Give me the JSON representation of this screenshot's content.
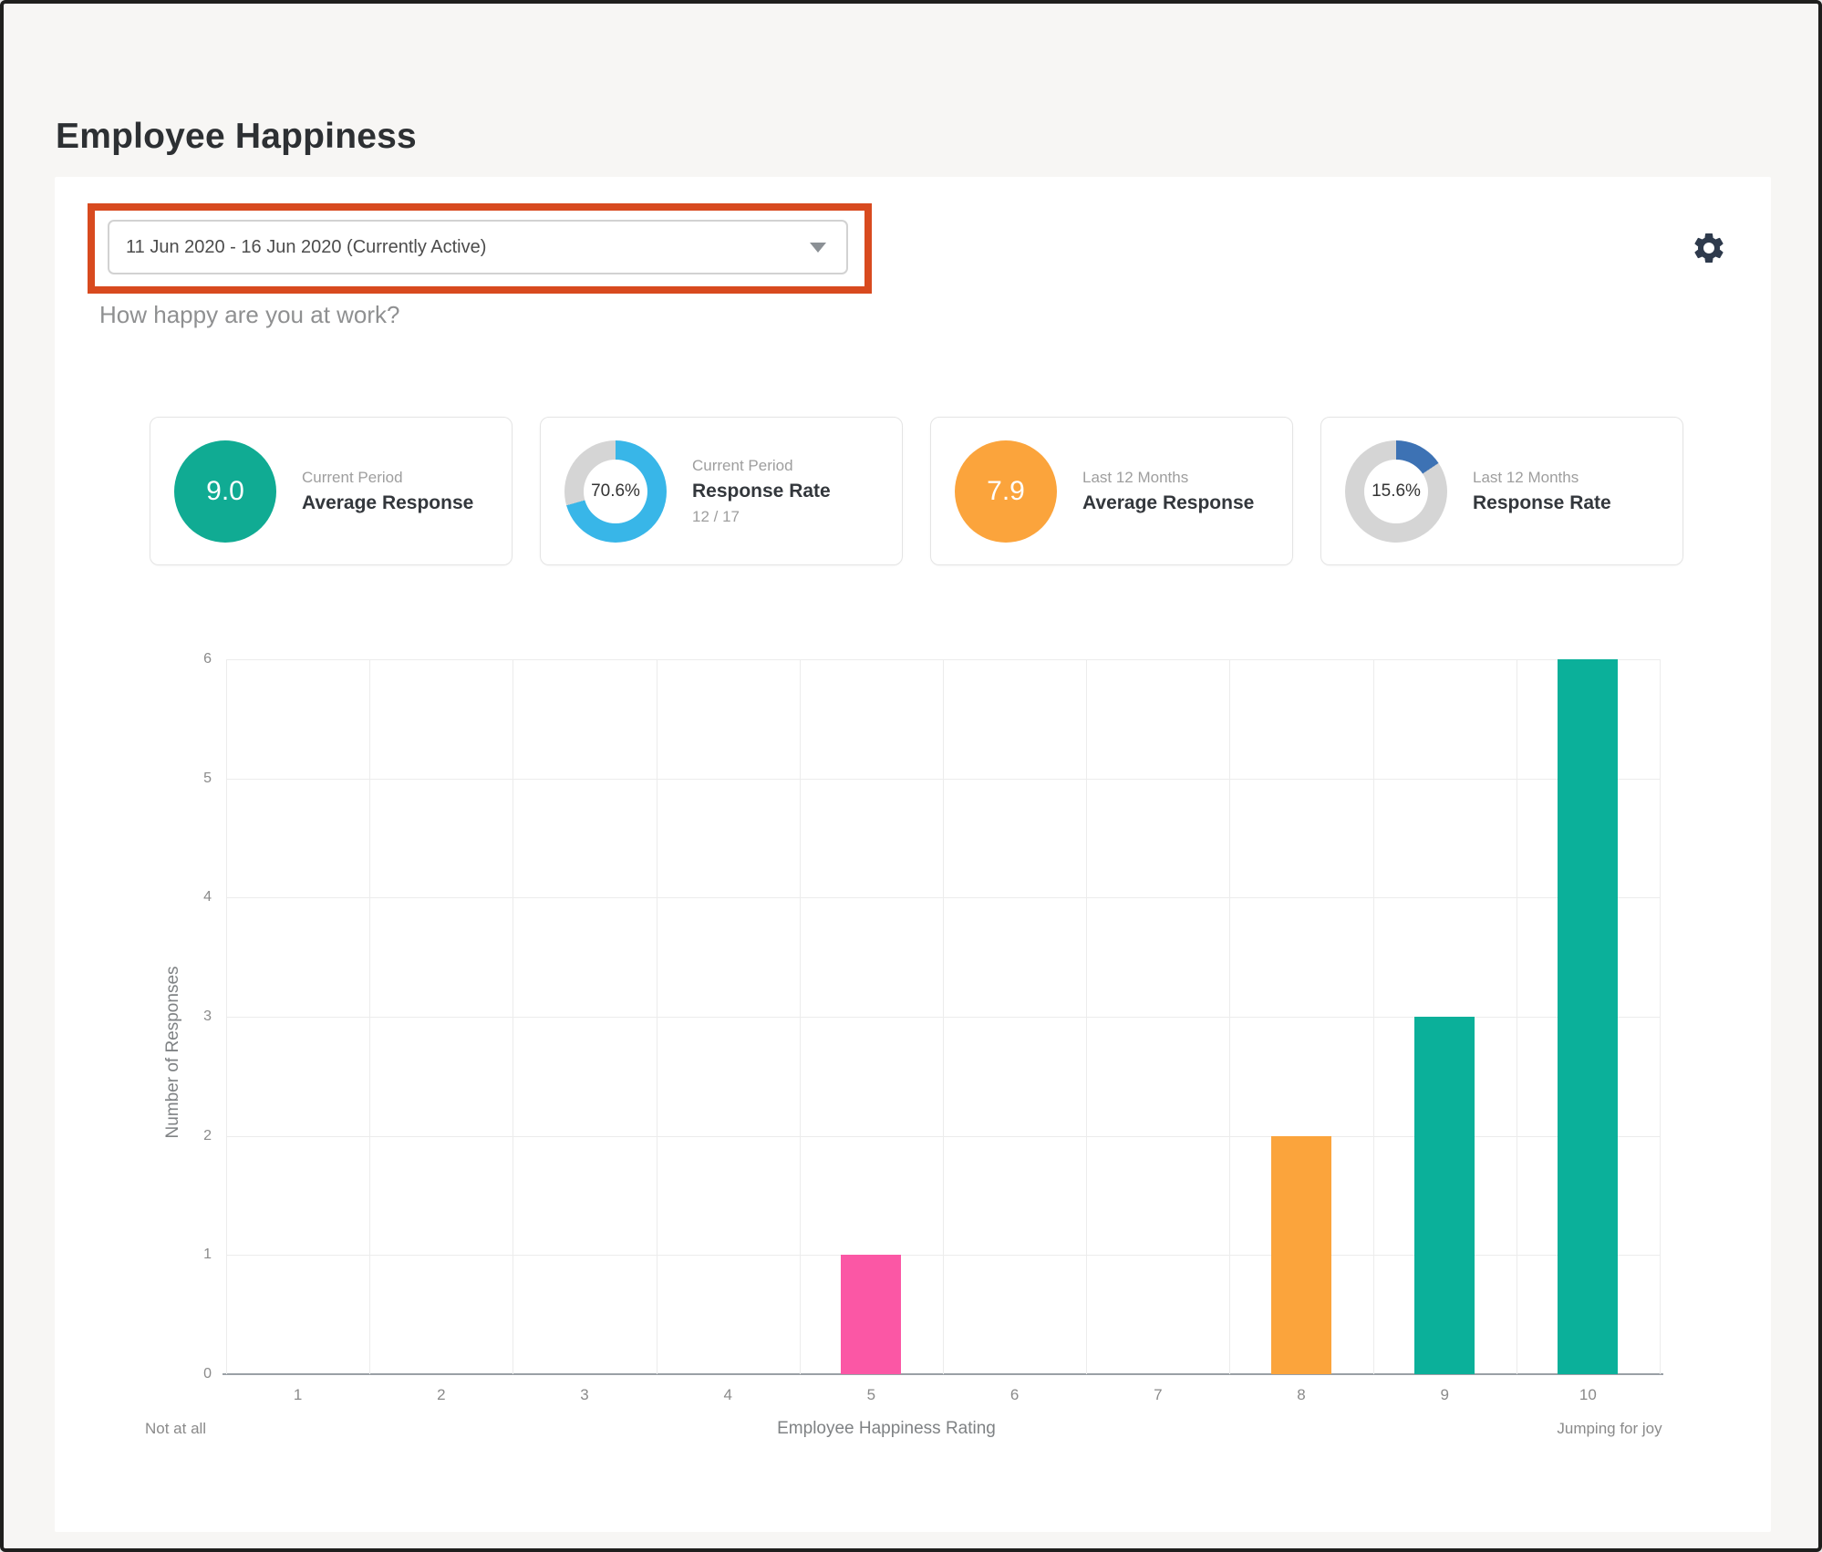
{
  "page": {
    "title": "Employee Happiness"
  },
  "toolbar": {
    "period_dropdown": {
      "value": "11 Jun 2020 - 16 Jun 2020 (Currently Active)"
    },
    "settings_icon": "gear-icon",
    "settings_icon_color": "#2e3a4c"
  },
  "annotation": {
    "highlight_color": "#d84a1f"
  },
  "question": "How happy are you at work?",
  "cards": [
    {
      "badge_type": "circle",
      "badge_value": "9.0",
      "badge_color": "#10ab93",
      "percent": 100,
      "label_top": "Current Period",
      "label_main": "Average Response",
      "label_sub": ""
    },
    {
      "badge_type": "donut",
      "badge_value": "70.6%",
      "badge_color": "#38b6e8",
      "percent": 70.6,
      "label_top": "Current Period",
      "label_main": "Response Rate",
      "label_sub": "12 / 17"
    },
    {
      "badge_type": "circle",
      "badge_value": "7.9",
      "badge_color": "#fba43c",
      "percent": 100,
      "label_top": "Last 12 Months",
      "label_main": "Average Response",
      "label_sub": ""
    },
    {
      "badge_type": "donut",
      "badge_value": "15.6%",
      "badge_color": "#3d72b4",
      "percent": 15.6,
      "label_top": "Last 12 Months",
      "label_main": "Response Rate",
      "label_sub": ""
    }
  ],
  "donut_track_color": "#d5d5d5",
  "chart_data": {
    "type": "bar",
    "title": "",
    "categories": [
      "1",
      "2",
      "3",
      "4",
      "5",
      "6",
      "7",
      "8",
      "9",
      "10"
    ],
    "values": [
      0,
      0,
      0,
      0,
      1,
      0,
      0,
      2,
      3,
      6
    ],
    "bar_colors": [
      "",
      "",
      "",
      "",
      "#fb57a5",
      "",
      "",
      "#fba43c",
      "#0bb09a",
      "#0bb09a"
    ],
    "xlabel": "Employee Happiness Rating",
    "ylabel": "Number of Responses",
    "ylim": [
      0,
      6
    ],
    "yticks": [
      0,
      1,
      2,
      3,
      4,
      5,
      6
    ],
    "x_min_caption": "Not at all",
    "x_max_caption": "Jumping for joy",
    "grid": true,
    "legend": false
  }
}
